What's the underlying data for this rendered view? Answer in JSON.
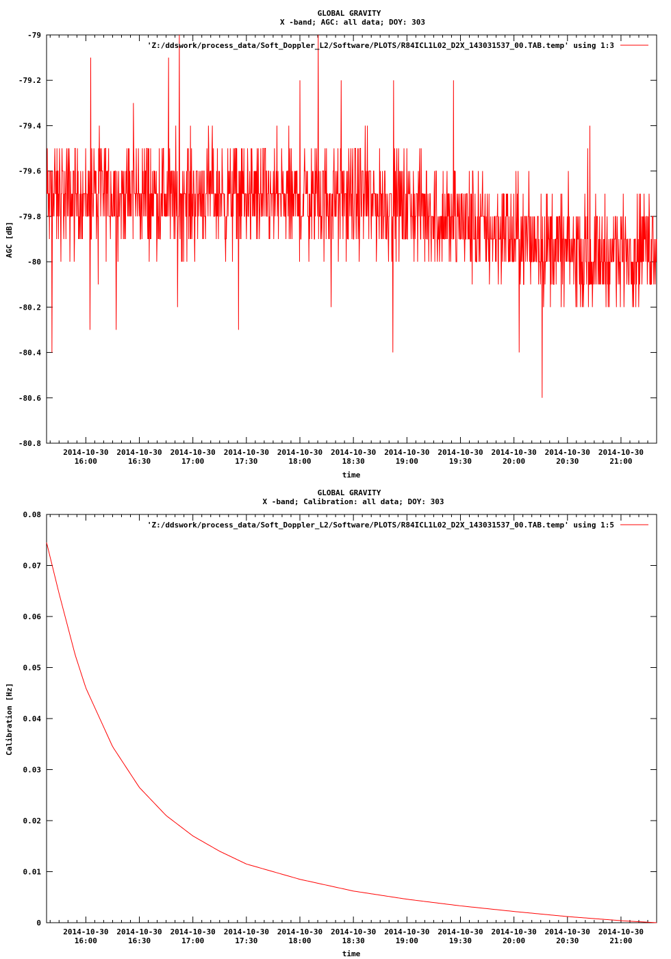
{
  "chart_data": [
    {
      "type": "line",
      "title": "GLOBAL GRAVITY",
      "subtitle": "X -band; AGC: all data; DOY: 303",
      "xlabel": "time",
      "ylabel": "AGC [dB]",
      "ylim": [
        -80.8,
        -79
      ],
      "yticks": [
        -79,
        -79.2,
        -79.4,
        -79.6,
        -79.8,
        -80,
        -80.2,
        -80.4,
        -80.6,
        -80.8
      ],
      "ytick_labels": [
        "-79",
        "-79.2",
        "-79.4",
        "-79.6",
        "-79.8",
        "-80",
        "-80.2",
        "-80.4",
        "-80.6",
        "-80.8"
      ],
      "xlim_hours": [
        15.633,
        21.333
      ],
      "xticks_hours": [
        16.0,
        16.5,
        17.0,
        17.5,
        18.0,
        18.5,
        19.0,
        19.5,
        20.0,
        20.5,
        21.0
      ],
      "xtick_dates": [
        "2014-10-30",
        "2014-10-30",
        "2014-10-30",
        "2014-10-30",
        "2014-10-30",
        "2014-10-30",
        "2014-10-30",
        "2014-10-30",
        "2014-10-30",
        "2014-10-30",
        "2014-10-30"
      ],
      "xtick_times": [
        "16:00",
        "16:30",
        "17:00",
        "17:30",
        "18:00",
        "18:30",
        "19:00",
        "19:30",
        "20:00",
        "20:30",
        "21:00"
      ],
      "grid": false,
      "legend_position": "top-right",
      "series": [
        {
          "name": "'Z:/ddswork/process_data/Soft_Doppler_L2/Software/PLOTS/R84ICL1L02_D2X_143031537_00.TAB.temp' using 1:3",
          "color": "#ff0000",
          "x_hours": [
            15.633,
            15.9,
            16.2,
            16.5,
            16.8,
            17.1,
            17.4,
            17.7,
            18.0,
            18.3,
            18.6,
            18.9,
            19.2,
            19.5,
            19.8,
            20.1,
            20.4,
            20.7,
            21.0,
            21.333
          ],
          "values": [
            -79.72,
            -79.71,
            -79.7,
            -79.71,
            -79.72,
            -79.7,
            -79.71,
            -79.72,
            -79.73,
            -79.72,
            -79.73,
            -79.75,
            -79.78,
            -79.82,
            -79.86,
            -79.9,
            -79.94,
            -79.98,
            -79.96,
            -79.9
          ],
          "noise": 0.18,
          "min_value": -80.8,
          "max_value": -79.0
        }
      ]
    },
    {
      "type": "line",
      "title": "GLOBAL GRAVITY",
      "subtitle": "X -band; Calibration: all data; DOY: 303",
      "xlabel": "time",
      "ylabel": "Calibration [Hz]",
      "ylim": [
        0,
        0.08
      ],
      "yticks": [
        0,
        0.01,
        0.02,
        0.03,
        0.04,
        0.05,
        0.06,
        0.07,
        0.08
      ],
      "ytick_labels": [
        "0",
        "0.01",
        "0.02",
        "0.03",
        "0.04",
        "0.05",
        "0.06",
        "0.07",
        "0.08"
      ],
      "xlim_hours": [
        15.633,
        21.333
      ],
      "xticks_hours": [
        16.0,
        16.5,
        17.0,
        17.5,
        18.0,
        18.5,
        19.0,
        19.5,
        20.0,
        20.5,
        21.0
      ],
      "xtick_dates": [
        "2014-10-30",
        "2014-10-30",
        "2014-10-30",
        "2014-10-30",
        "2014-10-30",
        "2014-10-30",
        "2014-10-30",
        "2014-10-30",
        "2014-10-30",
        "2014-10-30",
        "2014-10-30"
      ],
      "xtick_times": [
        "16:00",
        "16:30",
        "17:00",
        "17:30",
        "18:00",
        "18:30",
        "19:00",
        "19:30",
        "20:00",
        "20:30",
        "21:00"
      ],
      "grid": false,
      "legend_position": "top-right",
      "series": [
        {
          "name": "'Z:/ddswork/process_data/Soft_Doppler_L2/Software/PLOTS/R84ICL1L02_D2X_143031537_00.TAB.temp' using 1:5",
          "color": "#ff0000",
          "x_hours": [
            15.633,
            15.75,
            15.9,
            16.0,
            16.25,
            16.5,
            16.75,
            17.0,
            17.25,
            17.5,
            18.0,
            18.5,
            19.0,
            19.5,
            20.0,
            20.5,
            21.0,
            21.333
          ],
          "values": [
            0.0745,
            0.0645,
            0.0525,
            0.046,
            0.0345,
            0.0265,
            0.021,
            0.017,
            0.014,
            0.0115,
            0.0085,
            0.0062,
            0.0046,
            0.0033,
            0.0022,
            0.0012,
            0.0004,
            0.0
          ]
        }
      ]
    }
  ]
}
